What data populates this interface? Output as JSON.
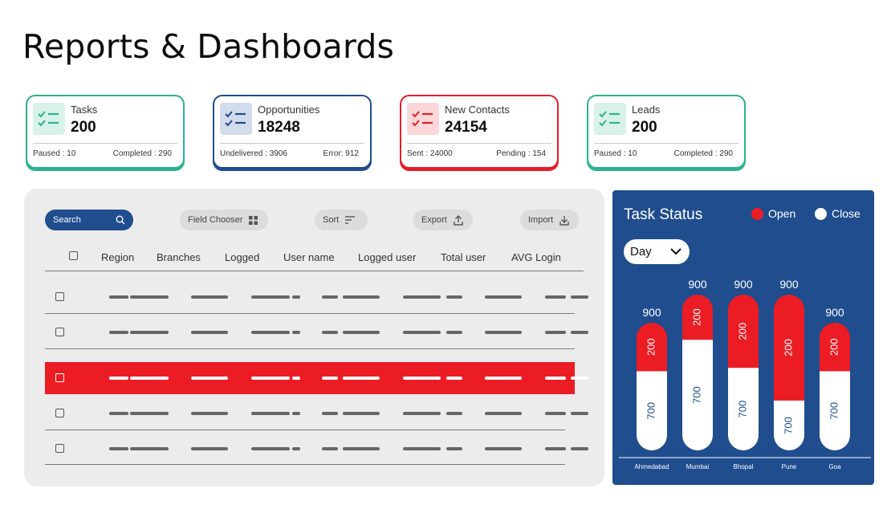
{
  "page": {
    "title": "Reports & Dashboards"
  },
  "cards": [
    {
      "name": "tasks",
      "label": "Tasks",
      "value": "200",
      "left": "Paused : 10",
      "right": "Completed : 290",
      "color": "#2bb38e",
      "icon_bg": "#d8f2ea",
      "icon": "list-check-icon"
    },
    {
      "name": "opportunities",
      "label": "Opportunities",
      "value": "18248",
      "left": "Undelivered : 3906",
      "right": "Error: 912",
      "color": "#1f4d8e",
      "icon_bg": "#d3dced",
      "icon": "list-check-icon"
    },
    {
      "name": "new-contacts",
      "label": "New Contacts",
      "value": "24154",
      "left": "Sent : 24000",
      "right": "Pending : 154",
      "color": "#e61e2a",
      "icon_bg": "#fbd7d9",
      "icon": "list-check-icon"
    },
    {
      "name": "leads",
      "label": "Leads",
      "value": "200",
      "left": "Paused : 10",
      "right": "Completed : 290",
      "color": "#2bb38e",
      "icon_bg": "#d8f2ea",
      "icon": "list-check-icon"
    }
  ],
  "toolbar": {
    "search": "Search",
    "field_chooser": "Field Chooser",
    "sort": "Sort",
    "export": "Export",
    "import": "Import"
  },
  "table": {
    "columns": [
      "Region",
      "Branches",
      "Logged",
      "User name",
      "Logged user",
      "Total user",
      "AVG Login"
    ],
    "row_count": 5,
    "selected_row": 3
  },
  "task_status": {
    "title": "Task Status",
    "legend": {
      "open": "Open",
      "close": "Close"
    },
    "period": "Day",
    "colors": {
      "panel": "#1f4d8e",
      "open": "#ec1c24",
      "close": "#ffffff"
    }
  },
  "chart_data": {
    "type": "bar",
    "stacked": true,
    "categories": [
      "Ahmedabad",
      "Mumbai",
      "Bhopal",
      "Pune",
      "Goa"
    ],
    "series": [
      {
        "name": "Open",
        "values": [
          200,
          200,
          200,
          200,
          200
        ]
      },
      {
        "name": "Close",
        "values": [
          700,
          700,
          700,
          700,
          700
        ]
      }
    ],
    "totals": [
      900,
      900,
      900,
      900,
      900
    ]
  }
}
